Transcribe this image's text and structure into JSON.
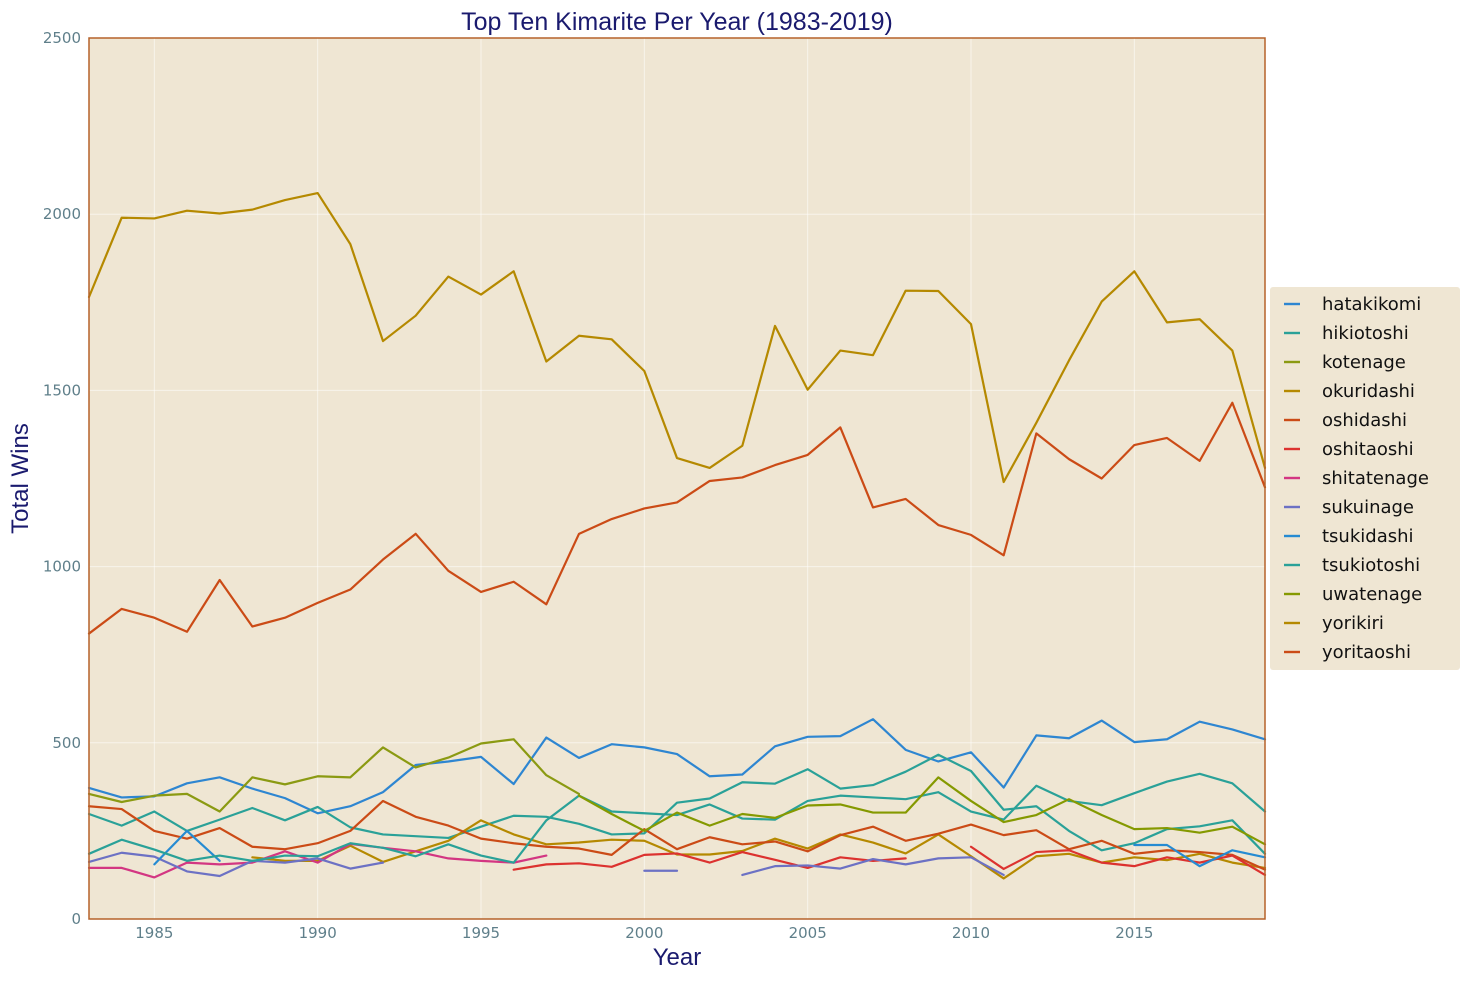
{
  "chart_data": {
    "type": "line",
    "title": "Top Ten Kimarite Per Year (1983-2019)",
    "xlabel": "Year",
    "ylabel": "Total Wins",
    "xlim": [
      1983,
      2019
    ],
    "ylim": [
      0,
      2500
    ],
    "xticks": [
      1985,
      1990,
      1995,
      2000,
      2005,
      2010,
      2015
    ],
    "yticks": [
      0,
      500,
      1000,
      1500,
      2000,
      2500
    ],
    "grid": true,
    "legend_position": "right",
    "background_color": "#efe6d3",
    "frame_color": "#b5622a",
    "x": [
      1983,
      1984,
      1985,
      1986,
      1987,
      1988,
      1989,
      1990,
      1991,
      1992,
      1993,
      1994,
      1995,
      1996,
      1997,
      1998,
      1999,
      2000,
      2001,
      2002,
      2003,
      2004,
      2005,
      2006,
      2007,
      2008,
      2009,
      2010,
      2011,
      2012,
      2013,
      2014,
      2015,
      2016,
      2017,
      2018,
      2019
    ],
    "series": [
      {
        "name": "hatakikomi",
        "color": "#2e86d1",
        "values": [
          372,
          345,
          348,
          385,
          402,
          370,
          343,
          300,
          320,
          360,
          437,
          447,
          460,
          383,
          515,
          457,
          496,
          487,
          468,
          405,
          410,
          490,
          517,
          519,
          567,
          480,
          447,
          473,
          373,
          521,
          513,
          563,
          502,
          510,
          560,
          538,
          510
        ]
      },
      {
        "name": "hikiotoshi",
        "color": "#2aa198",
        "values": [
          298,
          265,
          305,
          250,
          282,
          315,
          280,
          318,
          260,
          240,
          235,
          230,
          262,
          293,
          290,
          270,
          240,
          243,
          330,
          342,
          388,
          384,
          425,
          370,
          380,
          418,
          466,
          420,
          310,
          320,
          250,
          195,
          215,
          255,
          263,
          280,
          185
        ]
      },
      {
        "name": "kotenage",
        "color": "#8b9a12",
        "values": [
          355,
          332,
          350,
          355,
          305,
          402,
          382,
          405,
          402,
          487,
          430,
          458,
          498,
          510,
          408,
          355,
          null,
          null,
          null,
          null,
          null,
          null,
          null,
          null,
          null,
          null,
          null,
          null,
          null,
          null,
          null,
          null,
          null,
          null,
          null,
          null,
          null
        ]
      },
      {
        "name": "okuridashi",
        "color": "#b58900",
        "values": [
          null,
          null,
          null,
          null,
          null,
          175,
          165,
          165,
          208,
          162,
          192,
          222,
          280,
          240,
          212,
          217,
          225,
          222,
          183,
          183,
          193,
          228,
          200,
          240,
          217,
          186,
          240,
          178,
          115,
          178,
          185,
          160,
          175,
          167,
          185,
          160,
          145
        ]
      },
      {
        "name": "oshidashi",
        "color": "#cb4b16",
        "values": [
          320,
          312,
          250,
          228,
          258,
          205,
          198,
          215,
          250,
          335,
          290,
          265,
          228,
          215,
          205,
          200,
          182,
          255,
          198,
          232,
          212,
          220,
          192,
          238,
          262,
          222,
          242,
          268,
          238,
          252,
          198,
          222,
          185,
          195,
          190,
          182,
          140
        ]
      },
      {
        "name": "oshitaoshi",
        "color": "#dc322f",
        "values": [
          null,
          null,
          null,
          null,
          null,
          null,
          null,
          null,
          null,
          null,
          null,
          null,
          null,
          140,
          155,
          158,
          148,
          182,
          186,
          160,
          190,
          168,
          145,
          175,
          165,
          172,
          null,
          205,
          142,
          190,
          195,
          160,
          150,
          175,
          160,
          180,
          125
        ]
      },
      {
        "name": "shitatenage",
        "color": "#d33682",
        "values": [
          145,
          145,
          118,
          160,
          155,
          160,
          192,
          160,
          213,
          202,
          192,
          172,
          165,
          160,
          180,
          null,
          null,
          null,
          null,
          null,
          null,
          null,
          null,
          null,
          null,
          null,
          null,
          null,
          null,
          null,
          null,
          null,
          null,
          null,
          null,
          null,
          null
        ]
      },
      {
        "name": "sukuinage",
        "color": "#6c71c4",
        "values": [
          162,
          188,
          177,
          135,
          122,
          165,
          160,
          172,
          143,
          160,
          null,
          null,
          null,
          null,
          null,
          null,
          null,
          137,
          137,
          null,
          125,
          150,
          152,
          143,
          170,
          155,
          172,
          175,
          125,
          null,
          null,
          null,
          null,
          null,
          null,
          null,
          null
        ]
      },
      {
        "name": "tsukidashi",
        "color": "#268bd2",
        "values": [
          null,
          null,
          155,
          250,
          165,
          null,
          null,
          null,
          null,
          null,
          null,
          null,
          null,
          null,
          null,
          null,
          null,
          null,
          null,
          null,
          null,
          null,
          null,
          null,
          null,
          null,
          null,
          null,
          null,
          null,
          null,
          null,
          210,
          210,
          150,
          195,
          175
        ]
      },
      {
        "name": "tsukiotoshi",
        "color": "#2aa198",
        "values": [
          185,
          225,
          197,
          165,
          180,
          165,
          180,
          178,
          215,
          202,
          178,
          212,
          180,
          160,
          280,
          350,
          305,
          300,
          295,
          325,
          285,
          282,
          335,
          350,
          345,
          340,
          360,
          305,
          282,
          378,
          335,
          323,
          357,
          390,
          412,
          385,
          305
        ]
      },
      {
        "name": "uwatenage",
        "color": "#859900",
        "values": [
          null,
          null,
          null,
          null,
          null,
          null,
          null,
          null,
          null,
          null,
          null,
          null,
          null,
          null,
          null,
          350,
          298,
          250,
          302,
          265,
          298,
          287,
          322,
          325,
          302,
          302,
          402,
          335,
          275,
          295,
          340,
          295,
          255,
          258,
          245,
          262,
          212
        ]
      },
      {
        "name": "yorikiri",
        "color": "#b58900",
        "values": [
          1765,
          1990,
          1988,
          2010,
          2002,
          2013,
          2040,
          2060,
          1915,
          1640,
          1712,
          1823,
          1772,
          1838,
          1582,
          1655,
          1645,
          1555,
          1308,
          1280,
          1343,
          1683,
          1502,
          1613,
          1600,
          1783,
          1782,
          1688,
          1240,
          1408,
          1585,
          1752,
          1838,
          1693,
          1702,
          1613,
          1280
        ]
      },
      {
        "name": "yoritaoshi",
        "color": "#cb4b16",
        "values": [
          810,
          880,
          855,
          815,
          962,
          830,
          855,
          897,
          935,
          1020,
          1093,
          988,
          928,
          957,
          893,
          1093,
          1135,
          1165,
          1182,
          1243,
          1253,
          1288,
          1317,
          1395,
          1168,
          1192,
          1118,
          1090,
          1032,
          1378,
          1305,
          1250,
          1345,
          1365,
          1300,
          1465,
          1225
        ]
      }
    ]
  }
}
